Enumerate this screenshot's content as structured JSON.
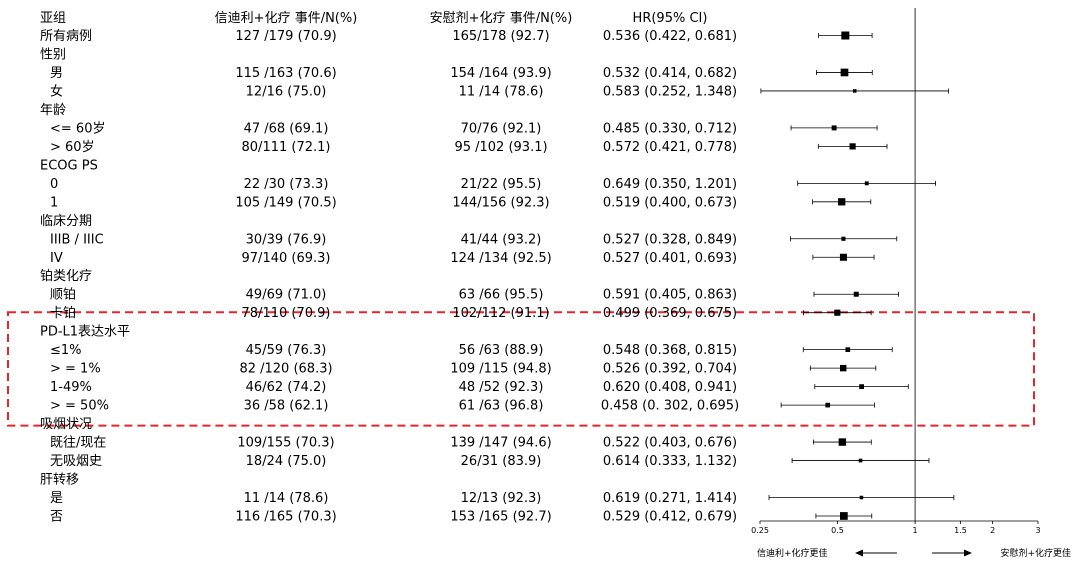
{
  "chart_data": {
    "type": "forest",
    "columns": {
      "subgroup": "亚组",
      "arm_a": "信迪利+化疗 事件/N(%)",
      "arm_b": "安慰剂+化疗 事件/N(%)",
      "hr": "HR(95% CI)"
    },
    "rows": [
      {
        "label": "所有病例",
        "header": false,
        "a": "127 /179 (70.9)",
        "b": "165/178 (92.7)",
        "hr_text": "0.536 (0.422, 0.681)",
        "hr": 0.536,
        "lo": 0.422,
        "hi": 0.681
      },
      {
        "label": "性别",
        "header": true
      },
      {
        "label": "男",
        "header": false,
        "a": "115 /163 (70.6)",
        "b": "154 /164 (93.9)",
        "hr_text": "0.532 (0.414, 0.682)",
        "hr": 0.532,
        "lo": 0.414,
        "hi": 0.682
      },
      {
        "label": "女",
        "header": false,
        "a": "12/16 (75.0)",
        "b": "11 /14 (78.6)",
        "hr_text": "0.583 (0.252, 1.348)",
        "hr": 0.583,
        "lo": 0.252,
        "hi": 1.348
      },
      {
        "label": "年龄",
        "header": true
      },
      {
        "label": "<= 60岁",
        "header": false,
        "a": "47 /68 (69.1)",
        "b": "70/76 (92.1)",
        "hr_text": "0.485 (0.330, 0.712)",
        "hr": 0.485,
        "lo": 0.33,
        "hi": 0.712
      },
      {
        "label": "> 60岁",
        "header": false,
        "a": "80/111 (72.1)",
        "b": "95 /102 (93.1)",
        "hr_text": "0.572 (0.421, 0.778)",
        "hr": 0.572,
        "lo": 0.421,
        "hi": 0.778
      },
      {
        "label": "ECOG PS",
        "header": true
      },
      {
        "label": "0",
        "header": false,
        "a": "22 /30 (73.3)",
        "b": "21/22 (95.5)",
        "hr_text": "0.649 (0.350, 1.201)",
        "hr": 0.649,
        "lo": 0.35,
        "hi": 1.201
      },
      {
        "label": "1",
        "header": false,
        "a": "105 /149 (70.5)",
        "b": "144/156 (92.3)",
        "hr_text": "0.519 (0.400, 0.673)",
        "hr": 0.519,
        "lo": 0.4,
        "hi": 0.673
      },
      {
        "label": "临床分期",
        "header": true
      },
      {
        "label": "IIIB / IIIC",
        "header": false,
        "a": "30/39 (76.9)",
        "b": "41/44 (93.2)",
        "hr_text": "0.527 (0.328, 0.849)",
        "hr": 0.527,
        "lo": 0.328,
        "hi": 0.849
      },
      {
        "label": "IV",
        "header": false,
        "a": "97/140 (69.3)",
        "b": "124 /134 (92.5)",
        "hr_text": "0.527 (0.401, 0.693)",
        "hr": 0.527,
        "lo": 0.401,
        "hi": 0.693
      },
      {
        "label": "铂类化疗",
        "header": true
      },
      {
        "label": "顺铂",
        "header": false,
        "a": "49/69 (71.0)",
        "b": "63 /66 (95.5)",
        "hr_text": "0.591 (0.405, 0.863)",
        "hr": 0.591,
        "lo": 0.405,
        "hi": 0.863
      },
      {
        "label": "卡铂",
        "header": false,
        "a": "78/110 (70.9)",
        "b": "102/112 (91.1)",
        "hr_text": "0.499 (0.369, 0.675)",
        "hr": 0.499,
        "lo": 0.369,
        "hi": 0.675
      },
      {
        "label": "PD-L1表达水平",
        "header": true
      },
      {
        "label": "≤1%",
        "header": false,
        "a": "45/59 (76.3)",
        "b": "56 /63 (88.9)",
        "hr_text": "0.548 (0.368, 0.815)",
        "hr": 0.548,
        "lo": 0.368,
        "hi": 0.815
      },
      {
        "label": "> = 1%",
        "header": false,
        "a": "82 /120 (68.3)",
        "b": "109 /115 (94.8)",
        "hr_text": "0.526 (0.392, 0.704)",
        "hr": 0.526,
        "lo": 0.392,
        "hi": 0.704
      },
      {
        "label": "1-49%",
        "header": false,
        "a": "46/62 (74.2)",
        "b": "48 /52 (92.3)",
        "hr_text": "0.620 (0.408, 0.941)",
        "hr": 0.62,
        "lo": 0.408,
        "hi": 0.941
      },
      {
        "label": "> = 50%",
        "header": false,
        "a": "36 /58 (62.1)",
        "b": "61 /63 (96.8)",
        "hr_text": "0.458 (0. 302, 0.695)",
        "hr": 0.458,
        "lo": 0.302,
        "hi": 0.695
      },
      {
        "label": "吸烟状况",
        "header": true
      },
      {
        "label": "既往/现在",
        "header": false,
        "a": "109/155 (70.3)",
        "b": "139 /147 (94.6)",
        "hr_text": "0.522 (0.403, 0.676)",
        "hr": 0.522,
        "lo": 0.403,
        "hi": 0.676
      },
      {
        "label": "无吸烟史",
        "header": false,
        "a": "18/24 (75.0)",
        "b": "26/31 (83.9)",
        "hr_text": "0.614 (0.333, 1.132)",
        "hr": 0.614,
        "lo": 0.333,
        "hi": 1.132
      },
      {
        "label": "肝转移",
        "header": true
      },
      {
        "label": "是",
        "header": false,
        "a": "11 /14 (78.6)",
        "b": "12/13 (92.3)",
        "hr_text": "0.619 (0.271, 1.414)",
        "hr": 0.619,
        "lo": 0.271,
        "hi": 1.414
      },
      {
        "label": "否",
        "header": false,
        "a": "116 /165 (70.3)",
        "b": "153 /165 (92.7)",
        "hr_text": "0.529 (0.412, 0.679)",
        "hr": 0.529,
        "lo": 0.412,
        "hi": 0.679
      }
    ],
    "x_axis": {
      "scale": "log",
      "ticks": [
        0.25,
        0.5,
        1,
        1.5,
        2,
        3
      ],
      "tick_labels": [
        "0.25",
        "0.5",
        "1",
        "1.5",
        "2",
        "3"
      ],
      "reference_line": 1
    },
    "favors_left": "信迪利+化疗更佳",
    "favors_right": "安慰剂+化疗更佳",
    "highlight": {
      "rows": "PD-L1表达水平",
      "style": "dashed",
      "color": "#e8262a"
    },
    "marker_color": "#000000"
  }
}
